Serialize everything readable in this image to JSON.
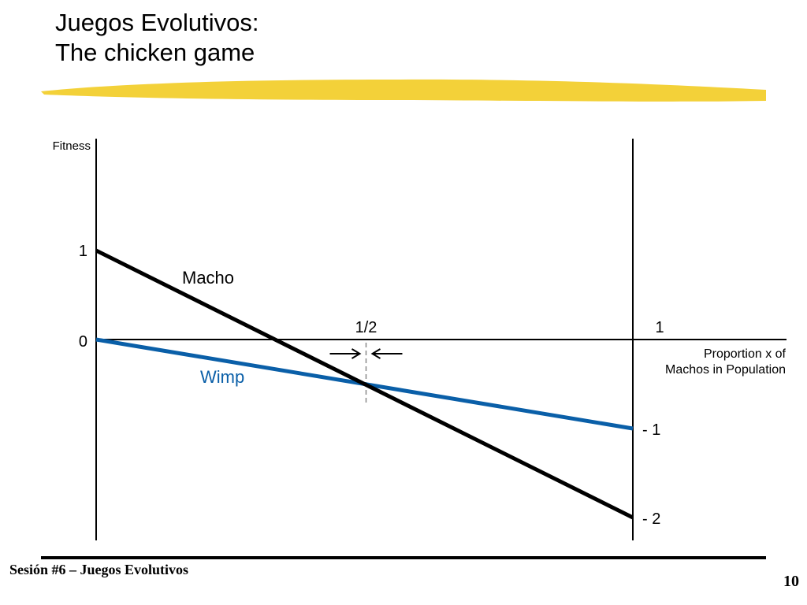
{
  "slide": {
    "title_line1": "Juegos Evolutivos:",
    "title_line2": "The chicken game",
    "footer": "Sesión #6 – Juegos Evolutivos",
    "page_number": "10"
  },
  "colors": {
    "highlight": "#f2cf2e",
    "macho": "#000000",
    "wimp": "#0a5fa8",
    "axis": "#000000"
  },
  "chart_data": {
    "type": "line",
    "ylabel": "Fitness",
    "xlabel_line1": "Proportion x of",
    "xlabel_line2": "Machos in Population",
    "xlim": [
      0,
      1
    ],
    "ylim": [
      -2.2,
      2.5
    ],
    "x_ticks": [
      {
        "value": 0.5,
        "label": "1/2"
      },
      {
        "value": 1,
        "label": "1"
      }
    ],
    "y_ticks": [
      {
        "value": 1,
        "label": "1"
      },
      {
        "value": 0,
        "label": "0"
      }
    ],
    "right_axis_labels": [
      {
        "value": -1,
        "label": "- 1"
      },
      {
        "value": -2,
        "label": "- 2"
      }
    ],
    "series": [
      {
        "name": "Macho",
        "x": [
          0,
          1
        ],
        "y": [
          1,
          -2
        ]
      },
      {
        "name": "Wimp",
        "x": [
          0,
          1
        ],
        "y": [
          0,
          -1
        ]
      }
    ],
    "annotations": {
      "equilibrium_x": 0.5,
      "arrows": "converging on x = 1/2"
    }
  }
}
